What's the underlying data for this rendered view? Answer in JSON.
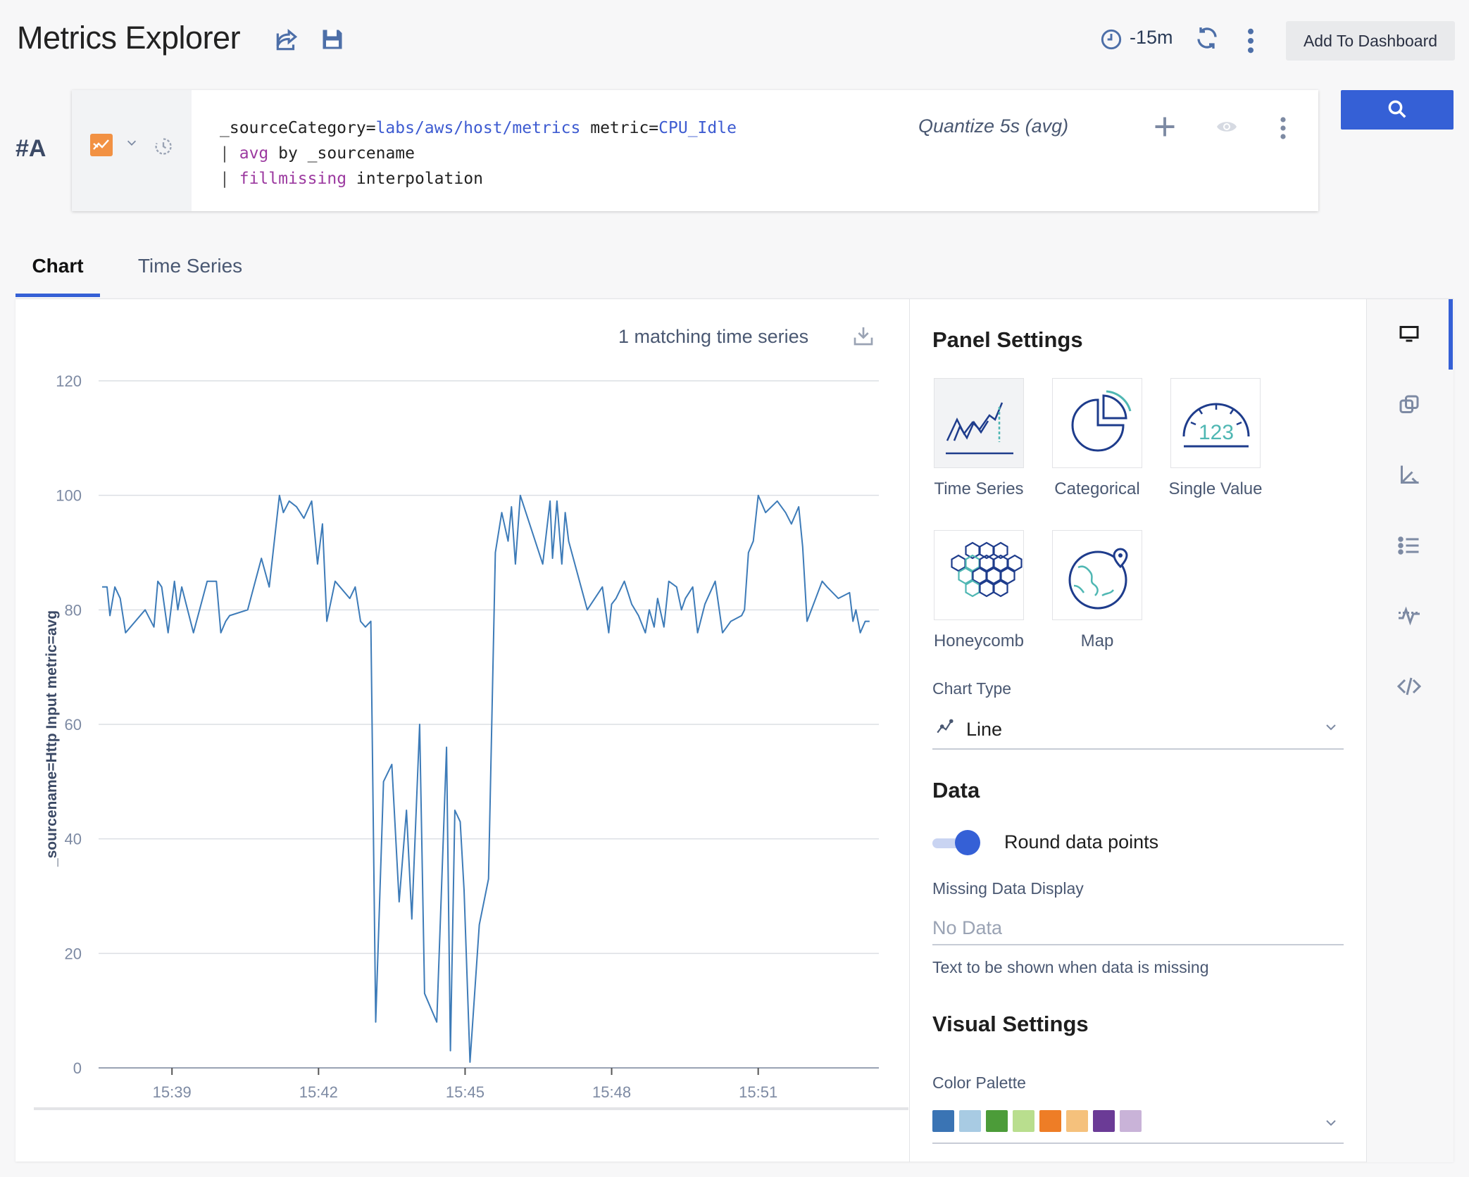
{
  "header": {
    "title": "Metrics Explorer",
    "time_range": "-15m",
    "add_to_dashboard": "Add To Dashboard"
  },
  "query": {
    "label": "#A",
    "line1_key": "_sourceCategory=",
    "line1_val": "labs/aws/host/metrics",
    "line1_key2": "metric=",
    "line1_val2": "CPU_Idle",
    "line2_pipe": "|",
    "line2_op": "avg",
    "line2_rest": "by _sourcename",
    "line3_pipe": "|",
    "line3_op": "fillmissing",
    "line3_rest": "interpolation",
    "quantize": "Quantize 5s (avg)"
  },
  "tabs": [
    {
      "label": "Chart",
      "active": true
    },
    {
      "label": "Time Series",
      "active": false
    }
  ],
  "chart": {
    "match_count": "1 matching time series"
  },
  "chart_data": {
    "type": "line",
    "ylabel": "_sourcename=Http Input metric=avg",
    "ylim": [
      0,
      120
    ],
    "yticks": [
      0,
      20,
      40,
      60,
      80,
      100,
      120
    ],
    "xlim_minutes": [
      37.44,
      53.47
    ],
    "xticks": [
      {
        "v": 39,
        "label": "15:39"
      },
      {
        "v": 42,
        "label": "15:42"
      },
      {
        "v": 45,
        "label": "15:45"
      },
      {
        "v": 48,
        "label": "15:48"
      },
      {
        "v": 51,
        "label": "15:51"
      }
    ],
    "grid": true,
    "color": "#3d7bb8",
    "series": [
      {
        "x": [
          37.57,
          37.67,
          37.73,
          37.83,
          37.94,
          38.05,
          38.45,
          38.63,
          38.71,
          38.79,
          38.92,
          39.05,
          39.12,
          39.2,
          39.44,
          39.72,
          39.91,
          40.0,
          40.1,
          40.18,
          40.55,
          40.83,
          40.99,
          41.2,
          41.28,
          41.4,
          41.55,
          41.7,
          41.86,
          41.98,
          42.08,
          42.17,
          42.34,
          42.64,
          42.75,
          42.86,
          42.96,
          43.07,
          43.17,
          43.33,
          43.5,
          43.65,
          43.8,
          43.91,
          44.07,
          44.17,
          44.42,
          44.62,
          44.7,
          44.79,
          44.9,
          44.98,
          45.1,
          45.29,
          45.48,
          45.62,
          45.75,
          45.88,
          45.95,
          46.03,
          46.13,
          46.59,
          46.74,
          46.79,
          46.88,
          46.98,
          47.05,
          47.12,
          47.5,
          47.81,
          47.94,
          48.0,
          48.09,
          48.26,
          48.41,
          48.55,
          48.69,
          48.77,
          48.87,
          48.94,
          49.07,
          49.17,
          49.33,
          49.43,
          49.51,
          49.66,
          49.76,
          49.91,
          50.12,
          50.27,
          50.44,
          50.66,
          50.72,
          50.8,
          50.9,
          51.0,
          51.15,
          51.39,
          51.56,
          51.68,
          51.83,
          51.91,
          52.0,
          52.31,
          52.41,
          52.64,
          52.87,
          52.94,
          53.0,
          53.09,
          53.19,
          53.28
        ],
        "values": [
          84,
          84,
          79,
          84,
          82,
          76,
          80,
          77,
          85,
          84,
          76,
          85,
          80,
          84,
          76,
          85,
          85,
          76,
          78,
          79,
          80,
          89,
          84,
          100,
          97,
          99,
          98,
          96,
          99,
          88,
          95,
          78,
          85,
          82,
          84,
          78,
          77,
          78,
          8,
          50,
          53,
          29,
          45,
          26,
          60,
          13,
          8,
          56,
          3,
          45,
          43,
          31,
          1,
          25,
          33,
          90,
          97,
          92,
          98,
          88,
          100,
          88,
          99,
          89,
          99,
          88,
          97,
          92,
          80,
          84,
          76,
          81,
          82,
          85,
          81,
          79,
          76,
          80,
          77,
          82,
          77,
          85,
          84,
          80,
          82,
          84,
          76,
          81,
          85,
          76,
          78,
          79,
          80,
          90,
          92,
          100,
          97,
          99,
          97,
          95,
          98,
          91,
          78,
          85,
          84,
          82,
          83,
          78,
          80,
          76,
          78,
          78
        ]
      }
    ]
  },
  "settings": {
    "panel_title": "Panel Settings",
    "viz": {
      "timeseries": "Time Series",
      "categorical": "Categorical",
      "singlevalue": "Single Value",
      "singlevalue_num": "123",
      "honeycomb": "Honeycomb",
      "map": "Map"
    },
    "chart_type_label": "Chart Type",
    "chart_type_value": "Line",
    "data_title": "Data",
    "round_label": "Round data points",
    "round_on": true,
    "missing_label": "Missing Data Display",
    "missing_placeholder": "No Data",
    "missing_help": "Text to be shown when data is missing",
    "visual_title": "Visual Settings",
    "palette_label": "Color Palette",
    "palette": [
      "#3a74b4",
      "#a8cbe3",
      "#4c9c39",
      "#b9de8e",
      "#ee7d26",
      "#f5c17c",
      "#6b3b96",
      "#c9b3d8"
    ]
  },
  "colors": {
    "accent": "#3560d6",
    "metric_icon": "#f29143"
  }
}
